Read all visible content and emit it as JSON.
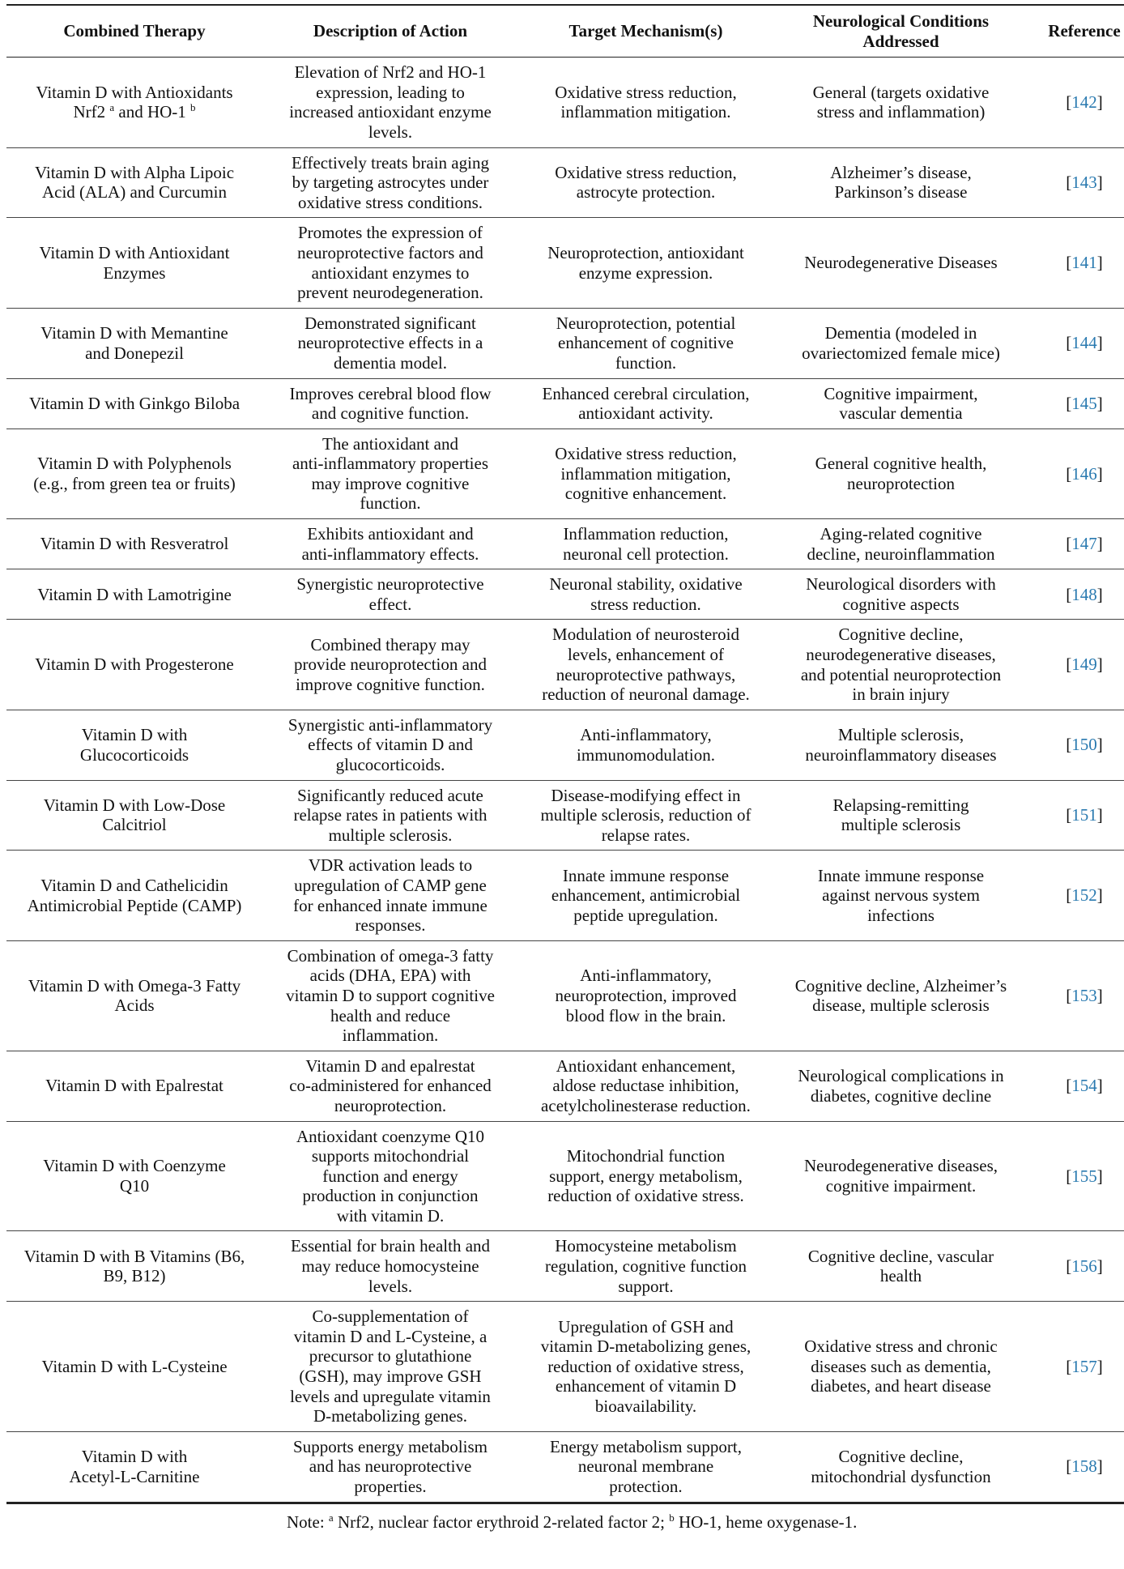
{
  "headers": [
    "Combined Therapy",
    "Description of Action",
    "Target Mechanism(s)",
    "Neurological Conditions\nAddressed",
    "Reference"
  ],
  "first_row": {
    "therapy_line1": "Vitamin D with Antioxidants",
    "therapy_part_a": "Nrf2 ",
    "sup_a": "a",
    "therapy_part_b": " and HO-1 ",
    "sup_b": "b",
    "description": "Elevation of Nrf2 and HO-1\nexpression, leading to\nincreased antioxidant enzyme\nlevels.",
    "mechanism": "Oxidative stress reduction,\ninflammation mitigation.",
    "conditions": "General (targets oxidative\nstress and inflammation)",
    "ref": "142"
  },
  "rows": [
    {
      "therapy": "Vitamin D with Alpha Lipoic\nAcid (ALA) and Curcumin",
      "description": "Effectively treats brain aging\nby targeting astrocytes under\noxidative stress conditions.",
      "mechanism": "Oxidative stress reduction,\nastrocyte protection.",
      "conditions": "Alzheimer’s disease,\nParkinson’s disease",
      "ref": "143"
    },
    {
      "therapy": "Vitamin D with Antioxidant\nEnzymes",
      "description": "Promotes the expression of\nneuroprotective factors and\nantioxidant enzymes to\nprevent neurodegeneration.",
      "mechanism": "Neuroprotection, antioxidant\nenzyme expression.",
      "conditions": "Neurodegenerative Diseases",
      "ref": "141"
    },
    {
      "therapy": "Vitamin D with Memantine\nand Donepezil",
      "description": "Demonstrated significant\nneuroprotective effects in a\ndementia model.",
      "mechanism": "Neuroprotection, potential\nenhancement of cognitive\nfunction.",
      "conditions": "Dementia (modeled in\novariectomized female mice)",
      "ref": "144"
    },
    {
      "therapy": "Vitamin D with Ginkgo Biloba",
      "description": "Improves cerebral blood flow\nand cognitive function.",
      "mechanism": "Enhanced cerebral circulation,\nantioxidant activity.",
      "conditions": "Cognitive impairment,\nvascular dementia",
      "ref": "145"
    },
    {
      "therapy": "Vitamin D with Polyphenols\n(e.g., from green tea or fruits)",
      "description": "The antioxidant and\nanti-inflammatory properties\nmay improve cognitive\nfunction.",
      "mechanism": "Oxidative stress reduction,\ninflammation mitigation,\ncognitive enhancement.",
      "conditions": "General cognitive health,\nneuroprotection",
      "ref": "146"
    },
    {
      "therapy": "Vitamin D with Resveratrol",
      "description": "Exhibits antioxidant and\nanti-inflammatory effects.",
      "mechanism": "Inflammation reduction,\nneuronal cell protection.",
      "conditions": "Aging-related cognitive\ndecline, neuroinflammation",
      "ref": "147"
    },
    {
      "therapy": "Vitamin D with Lamotrigine",
      "description": "Synergistic neuroprotective\neffect.",
      "mechanism": "Neuronal stability, oxidative\nstress reduction.",
      "conditions": "Neurological disorders with\ncognitive aspects",
      "ref": "148"
    },
    {
      "therapy": "Vitamin D with Progesterone",
      "description": "Combined therapy may\nprovide neuroprotection and\nimprove cognitive function.",
      "mechanism": "Modulation of neurosteroid\nlevels, enhancement of\nneuroprotective pathways,\nreduction of neuronal damage.",
      "conditions": "Cognitive decline,\nneurodegenerative diseases,\nand potential neuroprotection\nin brain injury",
      "ref": "149"
    },
    {
      "therapy": "Vitamin D with\nGlucocorticoids",
      "description": "Synergistic anti-inflammatory\neffects of vitamin D and\nglucocorticoids.",
      "mechanism": "Anti-inflammatory,\nimmunomodulation.",
      "conditions": "Multiple sclerosis,\nneuroinflammatory diseases",
      "ref": "150"
    },
    {
      "therapy": "Vitamin D with Low-Dose\nCalcitriol",
      "description": "Significantly reduced acute\nrelapse rates in patients with\nmultiple sclerosis.",
      "mechanism": "Disease-modifying effect in\nmultiple sclerosis, reduction of\nrelapse rates.",
      "conditions": "Relapsing-remitting\nmultiple sclerosis",
      "ref": "151"
    },
    {
      "therapy": "Vitamin D and Cathelicidin\nAntimicrobial Peptide (CAMP)",
      "description": "VDR activation leads to\nupregulation of CAMP gene\nfor enhanced innate immune\nresponses.",
      "mechanism": "Innate immune response\nenhancement, antimicrobial\npeptide upregulation.",
      "conditions": "Innate immune response\nagainst nervous system\ninfections",
      "ref": "152"
    },
    {
      "therapy": "Vitamin D with Omega-3 Fatty\nAcids",
      "description": "Combination of omega-3 fatty\nacids (DHA, EPA) with\nvitamin D to support cognitive\nhealth and reduce\ninflammation.",
      "mechanism": "Anti-inflammatory,\nneuroprotection, improved\nblood flow in the brain.",
      "conditions": "Cognitive decline, Alzheimer’s\ndisease, multiple sclerosis",
      "ref": "153"
    },
    {
      "therapy": "Vitamin D with Epalrestat",
      "description": "Vitamin D and epalrestat\nco-administered for enhanced\nneuroprotection.",
      "mechanism": "Antioxidant enhancement,\naldose reductase inhibition,\nacetylcholinesterase reduction.",
      "conditions": "Neurological complications in\ndiabetes, cognitive decline",
      "ref": "154"
    },
    {
      "therapy": "Vitamin D with Coenzyme\nQ10",
      "description": "Antioxidant coenzyme Q10\nsupports mitochondrial\nfunction and energy\nproduction in conjunction\nwith vitamin D.",
      "mechanism": "Mitochondrial function\nsupport, energy metabolism,\nreduction of oxidative stress.",
      "conditions": "Neurodegenerative diseases,\ncognitive impairment.",
      "ref": "155"
    },
    {
      "therapy": "Vitamin D with B Vitamins (B6,\nB9, B12)",
      "description": "Essential for brain health and\nmay reduce homocysteine\nlevels.",
      "mechanism": "Homocysteine metabolism\nregulation, cognitive function\nsupport.",
      "conditions": "Cognitive decline, vascular\nhealth",
      "ref": "156"
    },
    {
      "therapy": "Vitamin D with L-Cysteine",
      "description": "Co-supplementation of\nvitamin D and L-Cysteine, a\nprecursor to glutathione\n(GSH), may improve GSH\nlevels and upregulate vitamin\nD-metabolizing genes.",
      "mechanism": "Upregulation of GSH and\nvitamin D-metabolizing genes,\nreduction of oxidative stress,\nenhancement of vitamin D\nbioavailability.",
      "conditions": "Oxidative stress and chronic\ndiseases such as dementia,\ndiabetes, and heart disease",
      "ref": "157"
    },
    {
      "therapy": "Vitamin D with\nAcetyl-L-Carnitine",
      "description": "Supports energy metabolism\nand has neuroprotective\nproperties.",
      "mechanism": "Energy metabolism support,\nneuronal membrane\nprotection.",
      "conditions": "Cognitive decline,\nmitochondrial dysfunction",
      "ref": "158"
    }
  ],
  "note": {
    "prefix": "Note: ",
    "sup_a": "a",
    "text_a": " Nrf2, nuclear factor erythroid 2-related factor 2; ",
    "sup_b": "b",
    "text_b": " HO-1, heme oxygenase-1."
  }
}
